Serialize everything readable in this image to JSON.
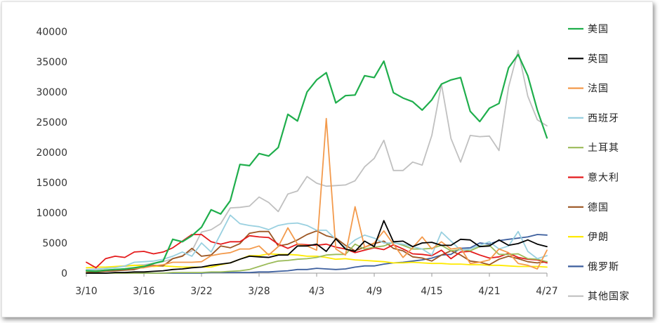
{
  "chart_data": {
    "type": "line",
    "title": "",
    "xlabel": "",
    "ylabel": "",
    "ylim": [
      0,
      40000
    ],
    "y_ticks": [
      0,
      5000,
      10000,
      15000,
      20000,
      25000,
      30000,
      35000,
      40000
    ],
    "x_ticks": [
      "3/10",
      "3/16",
      "3/22",
      "3/28",
      "4/3",
      "4/9",
      "4/15",
      "4/21",
      "4/27"
    ],
    "x": [
      "3/10",
      "3/11",
      "3/12",
      "3/13",
      "3/14",
      "3/15",
      "3/16",
      "3/17",
      "3/18",
      "3/19",
      "3/20",
      "3/21",
      "3/22",
      "3/23",
      "3/24",
      "3/25",
      "3/26",
      "3/27",
      "3/28",
      "3/29",
      "3/30",
      "3/31",
      "4/1",
      "4/2",
      "4/3",
      "4/4",
      "4/5",
      "4/6",
      "4/7",
      "4/8",
      "4/9",
      "4/10",
      "4/11",
      "4/12",
      "4/13",
      "4/14",
      "4/15",
      "4/16",
      "4/17",
      "4/18",
      "4/19",
      "4/20",
      "4/21",
      "4/22",
      "4/23",
      "4/24",
      "4/25",
      "4/26",
      "4/27"
    ],
    "grid": false,
    "legend_position": "right",
    "series": [
      {
        "name": "美国",
        "color": "#1fae4c",
        "values": [
          400,
          300,
          500,
          600,
          700,
          900,
          1100,
          1600,
          2000,
          5600,
          5200,
          6200,
          7600,
          10500,
          9800,
          12000,
          18000,
          17800,
          19800,
          19400,
          20800,
          26300,
          25200,
          30000,
          32000,
          33200,
          28200,
          29400,
          29500,
          32700,
          32400,
          35100,
          29900,
          29000,
          28400,
          27000,
          28700,
          31300,
          32000,
          32400,
          26800,
          25100,
          27300,
          28100,
          34000,
          36200,
          32700,
          27000,
          22400
        ]
      },
      {
        "name": "英国",
        "color": "#000000",
        "values": [
          0,
          0,
          0,
          100,
          100,
          200,
          200,
          300,
          400,
          600,
          700,
          900,
          1000,
          1300,
          1500,
          1700,
          2300,
          2800,
          2700,
          2600,
          3000,
          3000,
          4500,
          4500,
          4800,
          3600,
          5700,
          4000,
          3600,
          5300,
          4400,
          8700,
          5200,
          5300,
          4400,
          5000,
          5100,
          4600,
          4600,
          5600,
          5500,
          4400,
          4500,
          5500,
          4600,
          4900,
          5500,
          4800,
          4400
        ]
      },
      {
        "name": "法国",
        "color": "#f39a4c",
        "values": [
          300,
          400,
          500,
          600,
          700,
          800,
          900,
          1200,
          1400,
          1800,
          1800,
          1800,
          1900,
          2900,
          3200,
          3400,
          4000,
          4000,
          4500,
          3000,
          4400,
          7500,
          4800,
          4500,
          3800,
          25600,
          4000,
          3000,
          11000,
          4300,
          5000,
          7000,
          4800,
          2600,
          4200,
          6000,
          4000,
          5200,
          4000,
          4200,
          1600,
          1800,
          2200,
          4000,
          3400,
          1600,
          1300,
          700,
          3800
        ]
      },
      {
        "name": "西班牙",
        "color": "#99d0e0",
        "values": [
          500,
          600,
          800,
          900,
          1200,
          1800,
          1900,
          2000,
          2300,
          2800,
          3500,
          2800,
          5000,
          3500,
          6500,
          9600,
          8200,
          7900,
          7700,
          7200,
          7900,
          8200,
          8300,
          7900,
          7100,
          7100,
          5600,
          4200,
          5500,
          6300,
          5800,
          5000,
          5000,
          4800,
          4400,
          4000,
          3000,
          6800,
          5300,
          3800,
          4000,
          4600,
          5200,
          4000,
          4500,
          6900,
          3600,
          2400,
          2900
        ]
      },
      {
        "name": "土耳其",
        "color": "#9bbb59",
        "values": [
          0,
          0,
          0,
          0,
          0,
          0,
          0,
          0,
          0,
          100,
          100,
          100,
          100,
          200,
          200,
          300,
          400,
          600,
          1100,
          1600,
          2000,
          2100,
          2300,
          2400,
          2600,
          3000,
          3100,
          3100,
          4800,
          4000,
          4300,
          4500,
          5100,
          4600,
          4000,
          4000,
          4100,
          4600,
          3700,
          3900,
          3700,
          4400,
          4600,
          3100,
          3100,
          3200,
          2400,
          2300,
          1900
        ]
      },
      {
        "name": "意大利",
        "color": "#e41a1c",
        "values": [
          1800,
          900,
          2400,
          2800,
          2600,
          3500,
          3600,
          3200,
          3500,
          4200,
          5300,
          6400,
          6400,
          5200,
          4800,
          5200,
          5200,
          6200,
          6000,
          5900,
          4800,
          4100,
          4800,
          4700,
          4600,
          4800,
          4300,
          4000,
          3400,
          3800,
          4200,
          3900,
          4700,
          4000,
          3200,
          3100,
          2900,
          3800,
          2400,
          3500,
          3600,
          3000,
          2500,
          2700,
          3300,
          2600,
          2300,
          2200,
          1700
        ]
      },
      {
        "name": "德国",
        "color": "#9c5623",
        "values": [
          100,
          200,
          300,
          400,
          500,
          600,
          1000,
          1300,
          1200,
          2400,
          2800,
          4100,
          2800,
          3000,
          4500,
          4200,
          4900,
          6600,
          6900,
          6900,
          4500,
          4800,
          5500,
          6400,
          7000,
          6200,
          5800,
          4600,
          3700,
          4300,
          4900,
          5300,
          4100,
          3700,
          2700,
          2500,
          2000,
          3000,
          3700,
          3000,
          2000,
          1800,
          1400,
          2300,
          2800,
          2400,
          1900,
          1700,
          1900
        ]
      },
      {
        "name": "伊朗",
        "color": "#ffea00",
        "values": [
          900,
          1000,
          1000,
          1100,
          1200,
          1300,
          1200,
          1100,
          1200,
          1100,
          1000,
          1000,
          1000,
          1000,
          1400,
          1700,
          2300,
          2900,
          2900,
          3200,
          3100,
          3100,
          3000,
          2800,
          2800,
          2600,
          2300,
          2400,
          2200,
          2100,
          2000,
          1900,
          1700,
          1700,
          1800,
          1700,
          1600,
          1600,
          1500,
          1500,
          1400,
          1400,
          1300,
          1300,
          1200,
          1100,
          1100,
          1100,
          1000
        ]
      },
      {
        "name": "俄罗斯",
        "color": "#3d5f9e",
        "values": [
          0,
          0,
          0,
          0,
          0,
          0,
          0,
          0,
          0,
          0,
          0,
          0,
          0,
          100,
          100,
          100,
          100,
          100,
          200,
          200,
          300,
          400,
          600,
          600,
          800,
          700,
          600,
          700,
          1000,
          1200,
          1200,
          1500,
          1700,
          1800,
          2000,
          2200,
          2500,
          3000,
          3100,
          4100,
          4200,
          5000,
          4800,
          5400,
          5600,
          5800,
          6000,
          6400,
          6300
        ]
      },
      {
        "name": "其他国家",
        "color": "#c0c0c0",
        "values": [
          600,
          700,
          800,
          1000,
          1100,
          1300,
          1400,
          1600,
          1900,
          2400,
          2900,
          3700,
          6800,
          7200,
          8200,
          10800,
          10900,
          11100,
          12600,
          11700,
          10200,
          13100,
          13600,
          16000,
          14900,
          14400,
          14500,
          14600,
          15300,
          17600,
          19000,
          22000,
          17000,
          17000,
          18400,
          17900,
          22800,
          31300,
          22300,
          18400,
          22800,
          22600,
          22700,
          20300,
          30800,
          36900,
          29300,
          25400,
          24400
        ]
      }
    ]
  }
}
